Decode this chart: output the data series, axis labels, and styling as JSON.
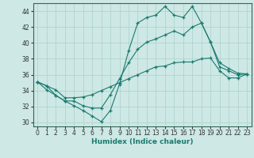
{
  "xlabel": "Humidex (Indice chaleur)",
  "xlim": [
    -0.5,
    23.5
  ],
  "ylim": [
    29.5,
    45.0
  ],
  "xticks": [
    0,
    1,
    2,
    3,
    4,
    5,
    6,
    7,
    8,
    9,
    10,
    11,
    12,
    13,
    14,
    15,
    16,
    17,
    18,
    19,
    20,
    21,
    22,
    23
  ],
  "yticks": [
    30,
    32,
    34,
    36,
    38,
    40,
    42,
    44
  ],
  "bg_color": "#cde8e5",
  "grid_color": "#b0d4d0",
  "line_color": "#1a7a6e",
  "line1_x": [
    0,
    1,
    2,
    3,
    4,
    5,
    6,
    7,
    8,
    9,
    10,
    11,
    12,
    13,
    14,
    15,
    16,
    17,
    18,
    19,
    20,
    21,
    22,
    23
  ],
  "line1_y": [
    35.1,
    34.6,
    33.4,
    32.7,
    32.1,
    31.5,
    30.8,
    30.1,
    31.5,
    34.8,
    39.0,
    42.5,
    43.2,
    43.5,
    44.6,
    43.5,
    43.2,
    44.6,
    42.5,
    40.1,
    37.0,
    36.5,
    36.0,
    36.1
  ],
  "line2_x": [
    0,
    1,
    2,
    3,
    4,
    5,
    6,
    7,
    8,
    9,
    10,
    11,
    12,
    13,
    14,
    15,
    16,
    17,
    18,
    19,
    20,
    21,
    22,
    23
  ],
  "line2_y": [
    35.1,
    34.1,
    33.4,
    32.7,
    32.7,
    32.1,
    31.8,
    31.8,
    33.5,
    35.5,
    37.5,
    39.2,
    40.1,
    40.5,
    41.0,
    41.5,
    41.0,
    42.0,
    42.5,
    40.1,
    37.5,
    36.8,
    36.2,
    36.1
  ],
  "line3_x": [
    0,
    1,
    2,
    3,
    4,
    5,
    6,
    7,
    8,
    9,
    10,
    11,
    12,
    13,
    14,
    15,
    16,
    17,
    18,
    19,
    20,
    21,
    22,
    23
  ],
  "line3_y": [
    35.1,
    34.6,
    34.1,
    33.1,
    33.1,
    33.2,
    33.5,
    34.0,
    34.5,
    35.0,
    35.5,
    36.0,
    36.5,
    37.0,
    37.1,
    37.5,
    37.6,
    37.6,
    38.0,
    38.1,
    36.5,
    35.6,
    35.6,
    36.1
  ]
}
